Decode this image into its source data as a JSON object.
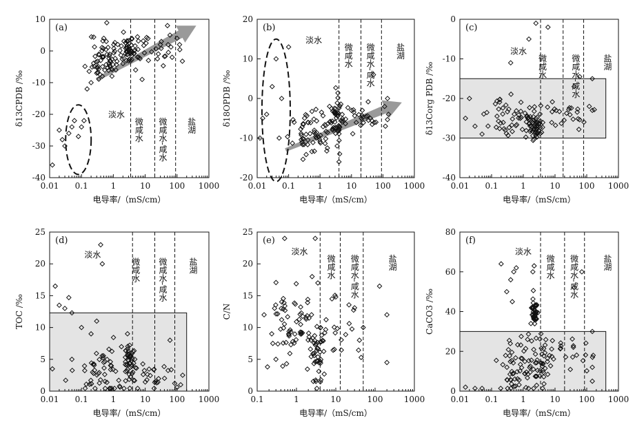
{
  "figure": {
    "colors": {
      "ink": "#111111",
      "shade": "#e4e4e4",
      "arrow": "#9a9a9a"
    },
    "chart_data": [
      {
        "id": "a",
        "type": "scatter",
        "panel_label": "(a)",
        "xlabel": "电导率/（mS/cm）",
        "ylabel": "δ13CPDB /‰",
        "xscale": "log",
        "xlim": [
          0.01,
          1000
        ],
        "ylim": [
          -40,
          10
        ],
        "xticks": [
          "0.01",
          "0.1",
          "1",
          "10",
          "100",
          "1000"
        ],
        "yticks": [
          "-40",
          "-30",
          "-20",
          "-10",
          "0",
          "10"
        ],
        "boundaries": [
          3.5,
          20,
          90
        ],
        "zones": [
          "淡水",
          "微咸水",
          "微咸水-咸水",
          "盐湖"
        ],
        "shade": null,
        "ellipse": {
          "cx": 0.08,
          "cy": -28,
          "rx_decades": 0.4,
          "ry": 11
        },
        "arrow": {
          "from": [
            0.3,
            -9
          ],
          "to": [
            400,
            8
          ]
        },
        "cluster_seed": 11,
        "clusters": [
          {
            "xc": 0.55,
            "xsd": 0.25,
            "yc": -2,
            "ysd": 4,
            "n": 60
          },
          {
            "xc": 3.2,
            "xsd": 0.12,
            "yc": 0,
            "ysd": 2,
            "n": 45
          },
          {
            "xc": 15,
            "xsd": 0.4,
            "yc": 0,
            "ysd": 3,
            "n": 30
          }
        ],
        "points": [
          [
            0.012,
            -36
          ],
          [
            0.02,
            -25
          ],
          [
            0.025,
            -28
          ],
          [
            0.03,
            -30
          ],
          [
            0.04,
            -26
          ],
          [
            0.05,
            -24
          ],
          [
            0.06,
            -22
          ],
          [
            0.08,
            -27
          ],
          [
            0.1,
            -24
          ],
          [
            0.12,
            -22
          ],
          [
            0.15,
            -12
          ],
          [
            0.2,
            -10
          ],
          [
            0.3,
            -7
          ],
          [
            0.45,
            -8
          ],
          [
            0.5,
            4
          ],
          [
            0.6,
            3
          ],
          [
            0.4,
            -3
          ],
          [
            0.35,
            -1
          ],
          [
            50,
            8
          ],
          [
            60,
            5
          ],
          [
            100,
            4
          ],
          [
            120,
            2
          ],
          [
            8,
            -9
          ],
          [
            5,
            -6
          ],
          [
            2,
            -4
          ],
          [
            1.2,
            -6
          ],
          [
            30,
            2
          ],
          [
            70,
            -2
          ]
        ]
      },
      {
        "id": "b",
        "type": "scatter",
        "panel_label": "(b)",
        "xlabel": "电导率/（mS/cm）",
        "ylabel": "δ18OPDB /‰",
        "xscale": "log",
        "xlim": [
          0.01,
          1000
        ],
        "ylim": [
          -20,
          20
        ],
        "xticks": [
          "0.01",
          "0.1",
          "1",
          "10",
          "100",
          "1000"
        ],
        "yticks": [
          "-20",
          "-10",
          "0",
          "10",
          "20"
        ],
        "boundaries": [
          4,
          20,
          90
        ],
        "zones": [
          "淡水",
          "微咸水",
          "微咸水-咸水",
          "盐湖"
        ],
        "shade": null,
        "ellipse": {
          "cx": 0.04,
          "cy": -3,
          "rx_decades": 0.45,
          "ry": 18
        },
        "arrow": {
          "from": [
            0.08,
            -13
          ],
          "to": [
            400,
            -1
          ]
        },
        "cluster_seed": 23,
        "clusters": [
          {
            "xc": 0.6,
            "xsd": 0.3,
            "yc": -9,
            "ysd": 2.5,
            "n": 60
          },
          {
            "xc": 3.2,
            "xsd": 0.12,
            "yc": -5,
            "ysd": 2.5,
            "n": 45
          },
          {
            "xc": 15,
            "xsd": 0.4,
            "yc": -5,
            "ysd": 2,
            "n": 25
          }
        ],
        "points": [
          [
            0.012,
            -10
          ],
          [
            0.015,
            -5
          ],
          [
            0.02,
            -4
          ],
          [
            0.03,
            3
          ],
          [
            0.04,
            10
          ],
          [
            0.05,
            -10
          ],
          [
            0.06,
            0
          ],
          [
            0.1,
            13
          ],
          [
            0.15,
            -6
          ],
          [
            50,
            6
          ],
          [
            60,
            -6
          ],
          [
            140,
            0
          ],
          [
            150,
            -4
          ],
          [
            120,
            -7
          ],
          [
            4,
            -16
          ],
          [
            4.2,
            -14
          ],
          [
            3.5,
            -12
          ],
          [
            2,
            -2
          ],
          [
            10,
            -3
          ],
          [
            40,
            -5
          ]
        ]
      },
      {
        "id": "c",
        "type": "scatter",
        "panel_label": "(c)",
        "xlabel": "电导率/（mS/cm）",
        "ylabel": "δ13Corg PDB /‰",
        "xscale": "log",
        "xlim": [
          0.01,
          1000
        ],
        "ylim": [
          -40,
          0
        ],
        "xticks": [
          "0.01",
          "0.1",
          "1",
          "10",
          "100",
          "1000"
        ],
        "yticks": [
          "-40",
          "-30",
          "-20",
          "-10",
          "0"
        ],
        "boundaries": [
          3.5,
          18,
          80
        ],
        "zones": [
          "淡水",
          "微咸水",
          "微咸水-咸水",
          "盐湖"
        ],
        "shade": {
          "x": [
            0.01,
            400
          ],
          "y": [
            -30,
            -15
          ]
        },
        "ellipse": null,
        "arrow": null,
        "cluster_seed": 37,
        "clusters": [
          {
            "xc": 0.5,
            "xsd": 0.4,
            "yc": -25,
            "ysd": 2.5,
            "n": 55
          },
          {
            "xc": 2.5,
            "xsd": 0.12,
            "yc": -27,
            "ysd": 1.5,
            "n": 45
          },
          {
            "xc": 15,
            "xsd": 0.5,
            "yc": -24,
            "ysd": 2,
            "n": 25
          }
        ],
        "points": [
          [
            2.5,
            -1
          ],
          [
            6,
            -2
          ],
          [
            1.5,
            -5
          ],
          [
            0.4,
            -11
          ],
          [
            60,
            -14.5
          ],
          [
            150,
            -15
          ],
          [
            40,
            -17
          ],
          [
            0.02,
            -20
          ],
          [
            0.015,
            -25
          ],
          [
            0.03,
            -27
          ],
          [
            0.05,
            -29
          ],
          [
            150,
            -23
          ],
          [
            120,
            -22
          ]
        ]
      },
      {
        "id": "d",
        "type": "scatter",
        "panel_label": "(d)",
        "xlabel": "电导率/（mS/cm）",
        "ylabel": "TOC /‰",
        "xscale": "log",
        "xlim": [
          0.01,
          1000
        ],
        "ylim": [
          0,
          25
        ],
        "xticks": [
          "0.01",
          "0.1",
          "1",
          "10",
          "100",
          "1000"
        ],
        "yticks": [
          "0",
          "5",
          "10",
          "15",
          "20",
          "25"
        ],
        "boundaries": [
          4,
          20,
          85
        ],
        "zones": [
          "淡水",
          "微咸水",
          "微咸水-咸水",
          "盐湖"
        ],
        "shade": {
          "x": [
            0.01,
            200
          ],
          "y": [
            0,
            12.3
          ]
        },
        "ellipse": null,
        "arrow": null,
        "cluster_seed": 53,
        "clusters": [
          {
            "xc": 0.5,
            "xsd": 0.45,
            "yc": 3,
            "ysd": 2.5,
            "n": 55
          },
          {
            "xc": 3.2,
            "xsd": 0.1,
            "yc": 5,
            "ysd": 1.6,
            "n": 45
          },
          {
            "xc": 20,
            "xsd": 0.5,
            "yc": 2,
            "ysd": 1.5,
            "n": 25
          }
        ],
        "points": [
          [
            0.4,
            23
          ],
          [
            0.45,
            20
          ],
          [
            0.015,
            16.5
          ],
          [
            0.02,
            13.5
          ],
          [
            0.03,
            13
          ],
          [
            0.04,
            14.7
          ],
          [
            0.05,
            12.3
          ],
          [
            0.3,
            11
          ],
          [
            0.2,
            9
          ],
          [
            0.1,
            10
          ],
          [
            0.012,
            3.5
          ],
          [
            0.05,
            5
          ],
          [
            100,
            0.6
          ],
          [
            130,
            1
          ],
          [
            150,
            2.5
          ],
          [
            60,
            8
          ]
        ]
      },
      {
        "id": "e",
        "type": "scatter",
        "panel_label": "(e)",
        "xlabel": "电导率/（mS/cm）",
        "ylabel": "C/N",
        "xscale": "log",
        "xlim": [
          0.1,
          1000
        ],
        "ylim": [
          0,
          25
        ],
        "xticks": [
          "0.1",
          "1",
          "10",
          "100",
          "1000"
        ],
        "yticks": [
          "0",
          "5",
          "10",
          "15",
          "20",
          "25"
        ],
        "boundaries": [
          4,
          13,
          50
        ],
        "zones": [
          "淡水",
          "微咸水",
          "微咸水-咸水",
          "盐湖"
        ],
        "shade": null,
        "ellipse": null,
        "arrow": null,
        "cluster_seed": 71,
        "clusters": [
          {
            "xc": 0.8,
            "xsd": 0.3,
            "yc": 10,
            "ysd": 3,
            "n": 60
          },
          {
            "xc": 3.3,
            "xsd": 0.12,
            "yc": 6,
            "ysd": 3,
            "n": 45
          },
          {
            "xc": 15,
            "xsd": 0.4,
            "yc": 9,
            "ysd": 3,
            "n": 20
          }
        ],
        "points": [
          [
            0.5,
            24
          ],
          [
            3,
            24
          ],
          [
            3.5,
            17
          ],
          [
            2.5,
            18
          ],
          [
            130,
            16.5
          ],
          [
            200,
            12
          ],
          [
            200,
            4.5
          ],
          [
            50,
            10
          ],
          [
            40,
            8
          ],
          [
            0.25,
            7.5
          ],
          [
            0.3,
            5
          ],
          [
            0.15,
            12
          ],
          [
            8,
            14.5
          ],
          [
            10,
            14.8
          ]
        ]
      },
      {
        "id": "f",
        "type": "scatter",
        "panel_label": "(f)",
        "xlabel": "电导率/（mS/cm）",
        "ylabel": "CaCO3 /‰",
        "xscale": "log",
        "xlim": [
          0.01,
          1000
        ],
        "ylim": [
          0,
          80
        ],
        "xticks": [
          "0.01",
          "0.1",
          "1",
          "10",
          "100",
          "1000"
        ],
        "yticks": [
          "0",
          "20",
          "40",
          "60",
          "80"
        ],
        "boundaries": [
          3.5,
          20,
          85
        ],
        "zones": [
          "淡水",
          "微咸水",
          "微咸水-咸水",
          "盐湖"
        ],
        "shade": {
          "x": [
            0.01,
            400
          ],
          "y": [
            0,
            30
          ]
        },
        "ellipse": null,
        "arrow": null,
        "cluster_seed": 89,
        "clusters": [
          {
            "xc": 0.8,
            "xsd": 0.35,
            "yc": 12,
            "ysd": 8,
            "n": 60
          },
          {
            "xc": 2.3,
            "xsd": 0.05,
            "yc": 40,
            "ysd": 3.5,
            "n": 35
          },
          {
            "xc": 3.5,
            "xsd": 0.15,
            "yc": 15,
            "ysd": 10,
            "n": 35
          },
          {
            "xc": 20,
            "xsd": 0.5,
            "yc": 20,
            "ysd": 5,
            "n": 25
          }
        ],
        "points": [
          [
            0.2,
            64
          ],
          [
            0.5,
            60
          ],
          [
            0.4,
            56
          ],
          [
            0.6,
            62
          ],
          [
            2.2,
            63
          ],
          [
            2,
            60
          ],
          [
            0.3,
            50
          ],
          [
            0.45,
            45
          ],
          [
            70,
            60
          ],
          [
            40,
            52
          ],
          [
            150,
            12
          ],
          [
            160,
            18
          ],
          [
            150,
            5
          ],
          [
            0.015,
            2
          ],
          [
            0.03,
            1
          ],
          [
            0.05,
            0.5
          ],
          [
            150,
            30
          ]
        ]
      }
    ]
  }
}
